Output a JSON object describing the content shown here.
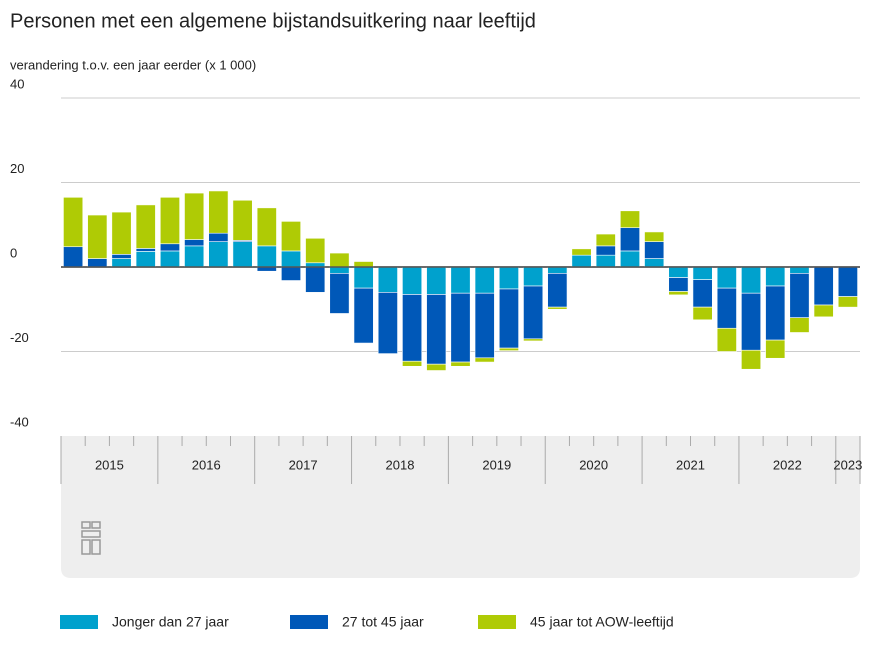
{
  "chart_data": {
    "type": "bar",
    "stacked": true,
    "title": "Personen met een algemene bijstandsuitkering naar leeftijd",
    "subtitle": "verandering t.o.v. een jaar eerder (x 1 000)",
    "categories": [
      "2015",
      null,
      null,
      null,
      "2016",
      null,
      null,
      null,
      "2017",
      null,
      null,
      null,
      "2018",
      null,
      null,
      null,
      "2019",
      null,
      null,
      null,
      "2020",
      null,
      null,
      null,
      "2021",
      null,
      null,
      null,
      "2022",
      null,
      null,
      null,
      "2023"
    ],
    "series": [
      {
        "name": "Jonger dan 27 jaar",
        "color": "#00a1cd",
        "values": [
          0,
          0,
          2,
          3.7,
          3.8,
          5,
          6,
          6,
          5,
          3.8,
          1,
          -1.5,
          -5,
          -6,
          -6.5,
          -6.5,
          -6.2,
          -6.2,
          -5.2,
          -4.5,
          -1.5,
          2.8,
          2.8,
          3.8,
          2,
          -2.5,
          -3,
          -5,
          -6.2,
          -4.5,
          -1.5,
          0,
          0
        ]
      },
      {
        "name": "27 tot 45 jaar",
        "color": "#0058b8",
        "values": [
          4.8,
          2,
          1,
          0.7,
          1.7,
          1.5,
          2,
          0.3,
          -1,
          -3.2,
          -6,
          -9.5,
          -13,
          -14.5,
          -15.8,
          -16.5,
          -16.3,
          -15.3,
          -14,
          -12.5,
          -8,
          0,
          2.2,
          5.5,
          4,
          -3.3,
          -6.5,
          -9.5,
          -13.5,
          -12.8,
          -10.5,
          -9,
          -7
        ]
      },
      {
        "name": "45 jaar tot AOW-leeftijd",
        "color": "#afcb05",
        "values": [
          11.7,
          10.3,
          10,
          10.3,
          11,
          11,
          10,
          9.5,
          9,
          7,
          5.8,
          3.3,
          1.3,
          0,
          -1.2,
          -1.5,
          -1,
          -1,
          -0.6,
          -0.5,
          -0.5,
          1.5,
          2.8,
          4,
          2.3,
          -0.8,
          -3,
          -5.5,
          -4.5,
          -4.3,
          -3.5,
          -2.8,
          -2.5
        ]
      }
    ],
    "ylim": [
      -40,
      40
    ],
    "yticks": [
      -40,
      -20,
      0,
      20,
      40
    ],
    "grid": true,
    "legend": "bottom"
  }
}
